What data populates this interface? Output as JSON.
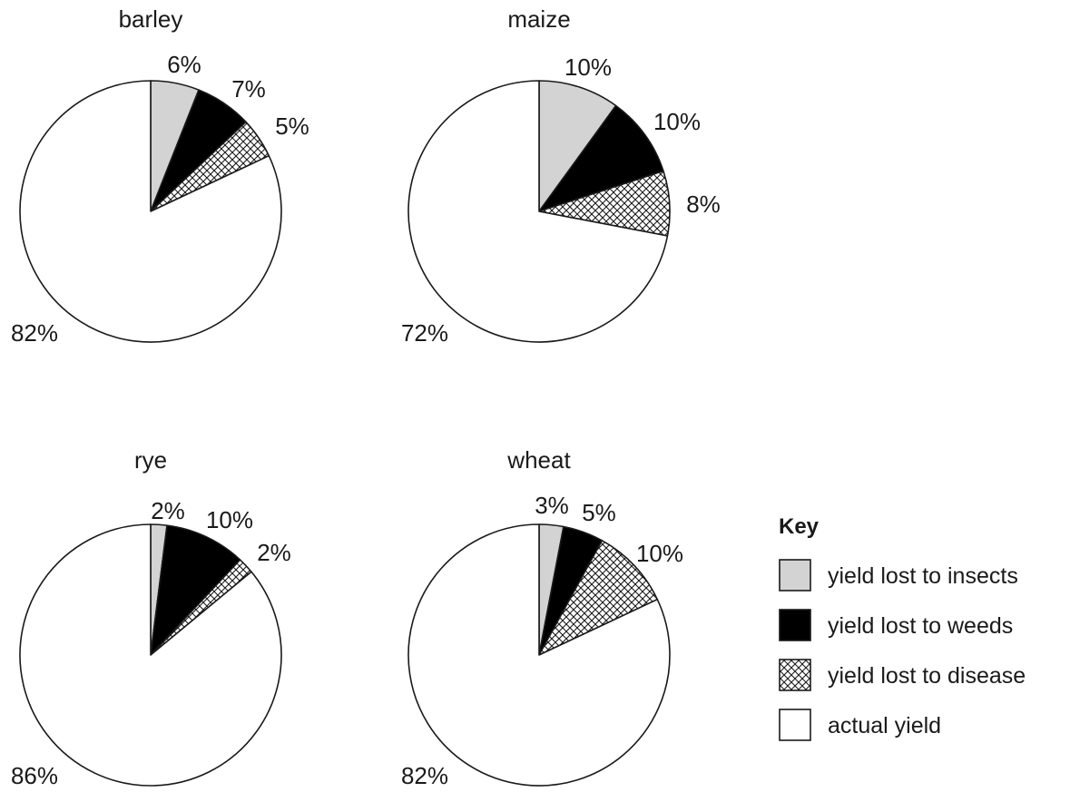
{
  "chart_data": [
    {
      "type": "pie",
      "title": "barley",
      "start_angle": "12 o'clock",
      "direction": "clockwise",
      "slices": [
        {
          "category": "insects",
          "value": 6,
          "label": "6%"
        },
        {
          "category": "weeds",
          "value": 7,
          "label": "7%"
        },
        {
          "category": "disease",
          "value": 5,
          "label": "5%"
        },
        {
          "category": "actual",
          "value": 82,
          "label": "82%"
        }
      ]
    },
    {
      "type": "pie",
      "title": "maize",
      "start_angle": "12 o'clock",
      "direction": "clockwise",
      "slices": [
        {
          "category": "insects",
          "value": 10,
          "label": "10%"
        },
        {
          "category": "weeds",
          "value": 10,
          "label": "10%"
        },
        {
          "category": "disease",
          "value": 8,
          "label": "8%"
        },
        {
          "category": "actual",
          "value": 72,
          "label": "72%"
        }
      ]
    },
    {
      "type": "pie",
      "title": "rye",
      "start_angle": "12 o'clock",
      "direction": "clockwise",
      "slices": [
        {
          "category": "insects",
          "value": 2,
          "label": "2%"
        },
        {
          "category": "weeds",
          "value": 10,
          "label": "10%"
        },
        {
          "category": "disease",
          "value": 2,
          "label": "2%"
        },
        {
          "category": "actual",
          "value": 86,
          "label": "86%"
        }
      ]
    },
    {
      "type": "pie",
      "title": "wheat",
      "start_angle": "12 o'clock",
      "direction": "clockwise",
      "slices": [
        {
          "category": "insects",
          "value": 3,
          "label": "3%"
        },
        {
          "category": "weeds",
          "value": 5,
          "label": "5%"
        },
        {
          "category": "disease",
          "value": 10,
          "label": "10%"
        },
        {
          "category": "actual",
          "value": 82,
          "label": "82%"
        }
      ]
    }
  ],
  "legend": {
    "title": "Key",
    "placement": "bottom-right",
    "items": [
      {
        "category": "insects",
        "label": "yield lost to insects"
      },
      {
        "category": "weeds",
        "label": "yield lost to weeds"
      },
      {
        "category": "disease",
        "label": "yield lost to disease"
      },
      {
        "category": "actual",
        "label": "actual yield"
      }
    ]
  },
  "styles": {
    "insects": {
      "fill": "#d3d3d3"
    },
    "weeds": {
      "fill": "#000000"
    },
    "disease": {
      "fill": "crosshatch"
    },
    "actual": {
      "fill": "#ffffff"
    },
    "stroke": "#1a1a1a"
  }
}
